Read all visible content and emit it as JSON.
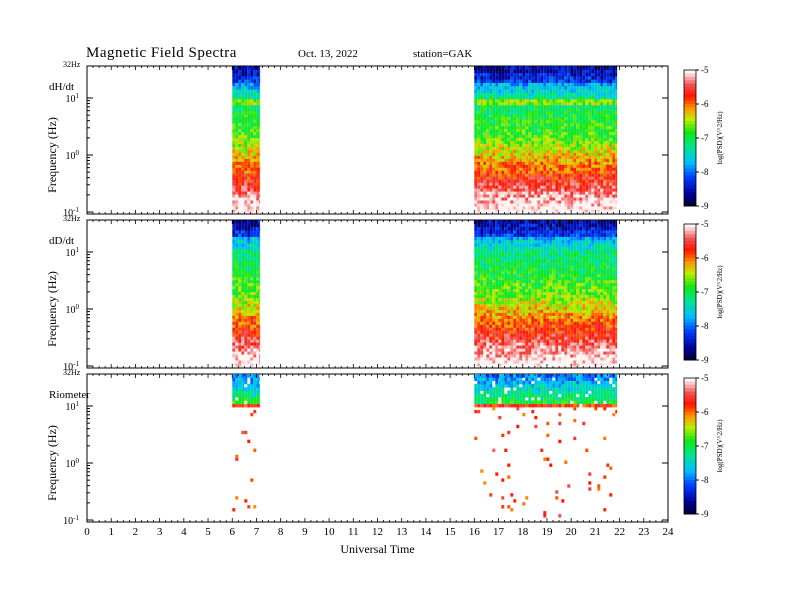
{
  "header": {
    "title": "Magnetic  Field  Spectra",
    "date": "Oct. 13, 2022",
    "station": "station=GAK"
  },
  "chart_data": [
    {
      "type": "heatmap",
      "panel_label": "dH/dt",
      "ylabel": "Frequency  (Hz)",
      "top_label": "32Hz",
      "yticks": [
        "10^1",
        "10^0",
        "10^-1"
      ],
      "y_log": true,
      "ylim": [
        0.1,
        32
      ],
      "xlim": [
        0,
        24
      ],
      "data_intervals_hours": [
        [
          6.0,
          7.15
        ],
        [
          16.0,
          21.9
        ]
      ],
      "colorbar": {
        "min": -9,
        "max": -5,
        "ticks": [
          "-5",
          "-6",
          "-7",
          "-8",
          "-9"
        ],
        "label": "log(PSD)(V^2/Hz)"
      }
    },
    {
      "type": "heatmap",
      "panel_label": "dD/dt",
      "ylabel": "Frequency  (Hz)",
      "top_label": "32Hz",
      "yticks": [
        "10^1",
        "10^0",
        "10^-1"
      ],
      "y_log": true,
      "ylim": [
        0.1,
        32
      ],
      "xlim": [
        0,
        24
      ],
      "data_intervals_hours": [
        [
          6.0,
          7.15
        ],
        [
          16.0,
          21.9
        ]
      ],
      "colorbar": {
        "min": -9,
        "max": -5,
        "ticks": [
          "-5",
          "-6",
          "-7",
          "-8",
          "-9"
        ],
        "label": "log(PSD)(V^2/Hz)"
      }
    },
    {
      "type": "heatmap",
      "panel_label": "Riometer",
      "ylabel": "Frequency  (Hz)",
      "top_label": "32Hz",
      "yticks": [
        "10^1",
        "10^0",
        "10^-1"
      ],
      "y_log": true,
      "ylim": [
        0.1,
        32
      ],
      "xlim": [
        0,
        24
      ],
      "data_intervals_hours": [
        [
          6.0,
          7.15
        ],
        [
          16.0,
          21.9
        ]
      ],
      "colorbar": {
        "min": -9,
        "max": -5,
        "ticks": [
          "-5",
          "-6",
          "-7",
          "-8",
          "-9"
        ],
        "label": "log(PSD)(V^2/Hz)"
      }
    }
  ],
  "xaxis": {
    "label": "Universal Time",
    "ticks": [
      "0",
      "1",
      "2",
      "3",
      "4",
      "5",
      "6",
      "7",
      "8",
      "9",
      "10",
      "11",
      "12",
      "13",
      "14",
      "15",
      "16",
      "17",
      "18",
      "19",
      "20",
      "21",
      "22",
      "23",
      "24"
    ]
  }
}
